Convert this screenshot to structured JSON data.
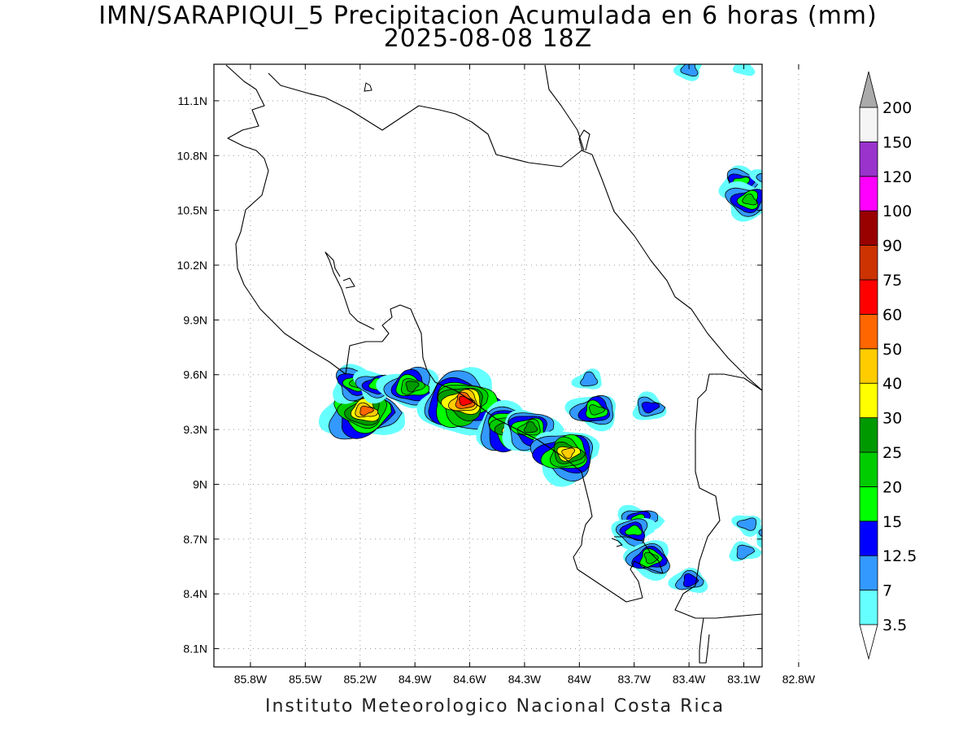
{
  "title": {
    "line1": "IMN/SARAPIQUI_5 Precipitacion Acumulada en 6 horas (mm)",
    "line2": "2025-08-08 18Z"
  },
  "footer": "Instituto Meteorologico Nacional Costa Rica",
  "map": {
    "lon_range": [
      -86.0,
      -83.0
    ],
    "lat_range": [
      8.0,
      11.3
    ],
    "lon_ticks": [
      {
        "value": -85.8,
        "label": "85.8W"
      },
      {
        "value": -85.5,
        "label": "85.5W"
      },
      {
        "value": -85.2,
        "label": "85.2W"
      },
      {
        "value": -84.9,
        "label": "84.9W"
      },
      {
        "value": -84.6,
        "label": "84.6W"
      },
      {
        "value": -84.3,
        "label": "84.3W"
      },
      {
        "value": -84.0,
        "label": "84W"
      },
      {
        "value": -83.7,
        "label": "83.7W"
      },
      {
        "value": -83.4,
        "label": "83.4W"
      },
      {
        "value": -83.1,
        "label": "83.1W"
      },
      {
        "value": -82.8,
        "label": "82.8W"
      }
    ],
    "lat_ticks": [
      {
        "value": 8.1,
        "label": "8.1N"
      },
      {
        "value": 8.4,
        "label": "8.4N"
      },
      {
        "value": 8.7,
        "label": "8.7N"
      },
      {
        "value": 9.0,
        "label": "9N"
      },
      {
        "value": 9.3,
        "label": "9.3N"
      },
      {
        "value": 9.6,
        "label": "9.6N"
      },
      {
        "value": 9.9,
        "label": "9.9N"
      },
      {
        "value": 10.2,
        "label": "10.2N"
      },
      {
        "value": 10.5,
        "label": "10.5N"
      },
      {
        "value": 10.8,
        "label": "10.8N"
      },
      {
        "value": 11.1,
        "label": "11.1N"
      }
    ],
    "grid": "dotted",
    "coastline_color": "#000000",
    "precip_cells": [
      {
        "lon": -85.19,
        "lat": 9.39,
        "peak": 50
      },
      {
        "lon": -85.23,
        "lat": 9.55,
        "peak": 20
      },
      {
        "lon": -85.12,
        "lat": 9.54,
        "peak": 15
      },
      {
        "lon": -84.93,
        "lat": 9.53,
        "peak": 25
      },
      {
        "lon": -84.65,
        "lat": 9.44,
        "peak": 60
      },
      {
        "lon": -84.38,
        "lat": 9.3,
        "peak": 40
      },
      {
        "lon": -84.28,
        "lat": 9.3,
        "peak": 25
      },
      {
        "lon": -84.08,
        "lat": 9.16,
        "peak": 40
      },
      {
        "lon": -83.92,
        "lat": 9.4,
        "peak": 20
      },
      {
        "lon": -83.95,
        "lat": 9.57,
        "peak": 7
      },
      {
        "lon": -83.62,
        "lat": 9.42,
        "peak": 12.5
      },
      {
        "lon": -83.68,
        "lat": 8.8,
        "peak": 15
      },
      {
        "lon": -83.71,
        "lat": 8.74,
        "peak": 15
      },
      {
        "lon": -83.62,
        "lat": 8.59,
        "peak": 20
      },
      {
        "lon": -83.4,
        "lat": 8.47,
        "peak": 12.5
      },
      {
        "lon": -83.12,
        "lat": 10.65,
        "peak": 15
      },
      {
        "lon": -83.08,
        "lat": 10.55,
        "peak": 20
      },
      {
        "lon": -82.98,
        "lat": 10.68,
        "peak": 7
      },
      {
        "lon": -83.4,
        "lat": 11.27,
        "peak": 7
      },
      {
        "lon": -83.1,
        "lat": 11.28,
        "peak": 3.5
      },
      {
        "lon": -83.1,
        "lat": 8.63,
        "peak": 7
      },
      {
        "lon": -82.97,
        "lat": 8.72,
        "peak": 7
      },
      {
        "lon": -83.08,
        "lat": 8.78,
        "peak": 7
      }
    ]
  },
  "colorbar": {
    "levels": [
      {
        "label": "3.5",
        "color": "#66ffff"
      },
      {
        "label": "7",
        "color": "#3399ff"
      },
      {
        "label": "12.5",
        "color": "#0000ff"
      },
      {
        "label": "15",
        "color": "#00ff00"
      },
      {
        "label": "20",
        "color": "#00cc00"
      },
      {
        "label": "25",
        "color": "#009900"
      },
      {
        "label": "30",
        "color": "#ffff00"
      },
      {
        "label": "40",
        "color": "#ffcc00"
      },
      {
        "label": "50",
        "color": "#ff6600"
      },
      {
        "label": "60",
        "color": "#ff0000"
      },
      {
        "label": "75",
        "color": "#cc3300"
      },
      {
        "label": "90",
        "color": "#990000"
      },
      {
        "label": "100",
        "color": "#ff00ff"
      },
      {
        "label": "120",
        "color": "#9933cc"
      },
      {
        "label": "150",
        "color": "#f5f5f5"
      },
      {
        "label": "200",
        "color": "#aaaaaa"
      }
    ]
  }
}
